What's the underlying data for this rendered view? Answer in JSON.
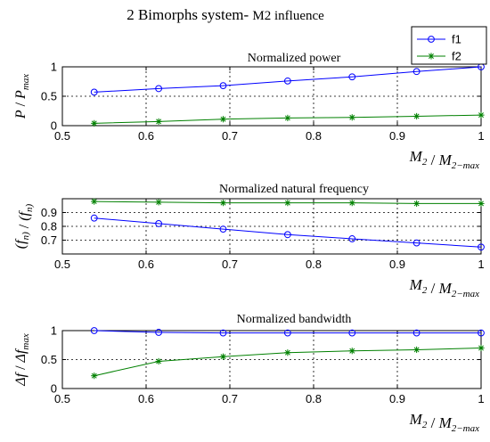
{
  "figure": {
    "title_main": "2 Bimorphs system- ",
    "title_sym": "M2 influence"
  },
  "legend": {
    "items": [
      {
        "label": "f1",
        "color": "#0000ff",
        "marker": "circle"
      },
      {
        "label": "f2",
        "color": "#008000",
        "marker": "star"
      }
    ]
  },
  "chart_data": [
    {
      "type": "line",
      "title": "Normalized power",
      "ylabel": "P / P_max",
      "xlabel": "M_2 / M_2-max",
      "xlim": [
        0.5,
        1
      ],
      "ylim": [
        0,
        1
      ],
      "xticks": [
        "0.5",
        "0.6",
        "0.7",
        "0.8",
        "0.9",
        "1"
      ],
      "yticks": [
        "0",
        "0.5",
        "1"
      ],
      "grid": true,
      "x": [
        0.538,
        0.615,
        0.692,
        0.769,
        0.846,
        0.923,
        1.0
      ],
      "series": [
        {
          "name": "f1",
          "values": [
            0.57,
            0.63,
            0.68,
            0.76,
            0.83,
            0.92,
            1.0
          ]
        },
        {
          "name": "f2",
          "values": [
            0.04,
            0.07,
            0.11,
            0.13,
            0.14,
            0.16,
            0.18
          ]
        }
      ]
    },
    {
      "type": "line",
      "title": "Normalized natural frequency",
      "ylabel": "(f_n) / (f_n)_max",
      "xlabel": "M_2 / M_2-max",
      "xlim": [
        0.5,
        1
      ],
      "ylim": [
        0.6,
        1.0
      ],
      "xticks": [
        "0.5",
        "0.6",
        "0.7",
        "0.8",
        "0.9",
        "1"
      ],
      "yticks": [
        "0.7",
        "0.8",
        "0.9"
      ],
      "grid": true,
      "x": [
        0.538,
        0.615,
        0.692,
        0.769,
        0.846,
        0.923,
        1.0
      ],
      "series": [
        {
          "name": "f1",
          "values": [
            0.86,
            0.82,
            0.78,
            0.74,
            0.71,
            0.68,
            0.65
          ]
        },
        {
          "name": "f2",
          "values": [
            0.98,
            0.975,
            0.97,
            0.97,
            0.97,
            0.965,
            0.965
          ]
        }
      ]
    },
    {
      "type": "line",
      "title": "Normalized bandwidth",
      "ylabel": "Δf / Δf_max",
      "xlabel": "M_2 / M_2-max",
      "xlim": [
        0.5,
        1
      ],
      "ylim": [
        0,
        1
      ],
      "xticks": [
        "0.5",
        "0.6",
        "0.7",
        "0.8",
        "0.9",
        "1"
      ],
      "yticks": [
        "0",
        "0.5",
        "1"
      ],
      "grid": true,
      "x": [
        0.538,
        0.615,
        0.692,
        0.769,
        0.846,
        0.923,
        1.0
      ],
      "series": [
        {
          "name": "f1",
          "values": [
            1.0,
            0.97,
            0.96,
            0.96,
            0.96,
            0.96,
            0.96
          ]
        },
        {
          "name": "f2",
          "values": [
            0.22,
            0.47,
            0.55,
            0.62,
            0.65,
            0.67,
            0.7
          ]
        }
      ]
    }
  ]
}
